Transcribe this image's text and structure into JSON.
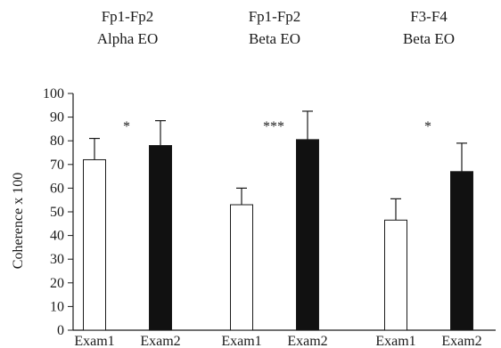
{
  "chart_data": {
    "type": "bar",
    "ylabel": "Coherence x 100",
    "ylim": [
      0,
      100
    ],
    "yticks": [
      0,
      10,
      20,
      30,
      40,
      50,
      60,
      70,
      80,
      90,
      100
    ],
    "categories": [
      "Exam1",
      "Exam2"
    ],
    "series_colors": {
      "Exam1": "#ffffff",
      "Exam2": "#111111"
    },
    "error_bars": "one-sided upward",
    "groups": [
      {
        "title_line1": "Fp1-Fp2",
        "title_line2": "Alpha EO",
        "significance": "*",
        "values": [
          72,
          78
        ],
        "errors": [
          9,
          10.5
        ]
      },
      {
        "title_line1": "Fp1-Fp2",
        "title_line2": "Beta EO",
        "significance": "***",
        "values": [
          53,
          80.5
        ],
        "errors": [
          7,
          12
        ]
      },
      {
        "title_line1": "F3-F4",
        "title_line2": "Beta EO",
        "significance": "*",
        "values": [
          46.5,
          67
        ],
        "errors": [
          9,
          12
        ]
      }
    ]
  }
}
